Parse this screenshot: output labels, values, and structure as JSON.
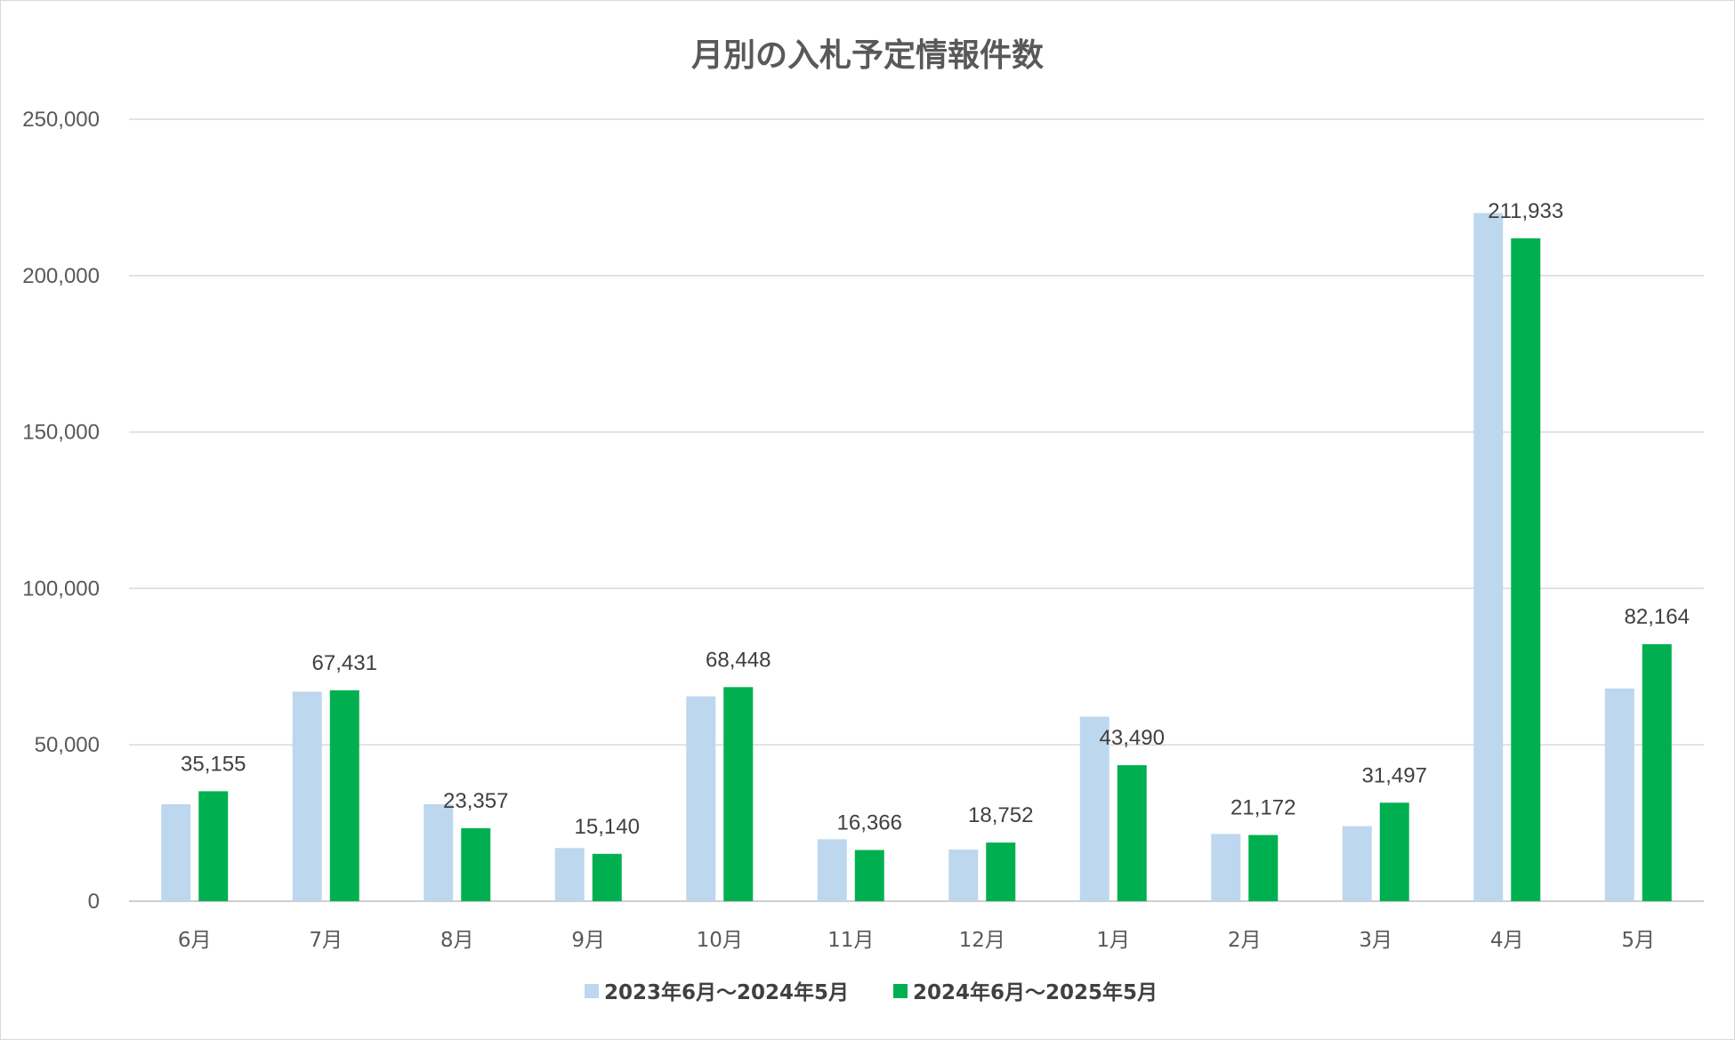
{
  "chart_data": {
    "type": "bar",
    "title": "月別の入札予定情報件数",
    "xlabel": "",
    "ylabel": "",
    "ylim": [
      0,
      250000
    ],
    "yticks": [
      "0",
      "50,000",
      "100,000",
      "150,000",
      "200,000",
      "250,000"
    ],
    "yticks_values": [
      0,
      50000,
      100000,
      150000,
      200000,
      250000
    ],
    "categories": [
      "6月",
      "7月",
      "8月",
      "9月",
      "10月",
      "11月",
      "12月",
      "1月",
      "2月",
      "3月",
      "4月",
      "5月"
    ],
    "grid": true,
    "legend_position": "bottom",
    "series": [
      {
        "name": "2023年6月〜2024年5月",
        "color": "#bdd7ee",
        "values": [
          31000,
          67000,
          31000,
          17000,
          65500,
          19800,
          16500,
          59000,
          21500,
          24000,
          220000,
          68000
        ],
        "labels": []
      },
      {
        "name": "2024年6月〜2025年5月",
        "color": "#00b050",
        "values": [
          35155,
          67431,
          23357,
          15140,
          68448,
          16366,
          18752,
          43490,
          21172,
          31497,
          211933,
          82164
        ],
        "labels": [
          "35,155",
          "67,431",
          "23,357",
          "15,140",
          "68,448",
          "16,366",
          "18,752",
          "43,490",
          "21,172",
          "31,497",
          "211,933",
          "82,164"
        ]
      }
    ]
  }
}
